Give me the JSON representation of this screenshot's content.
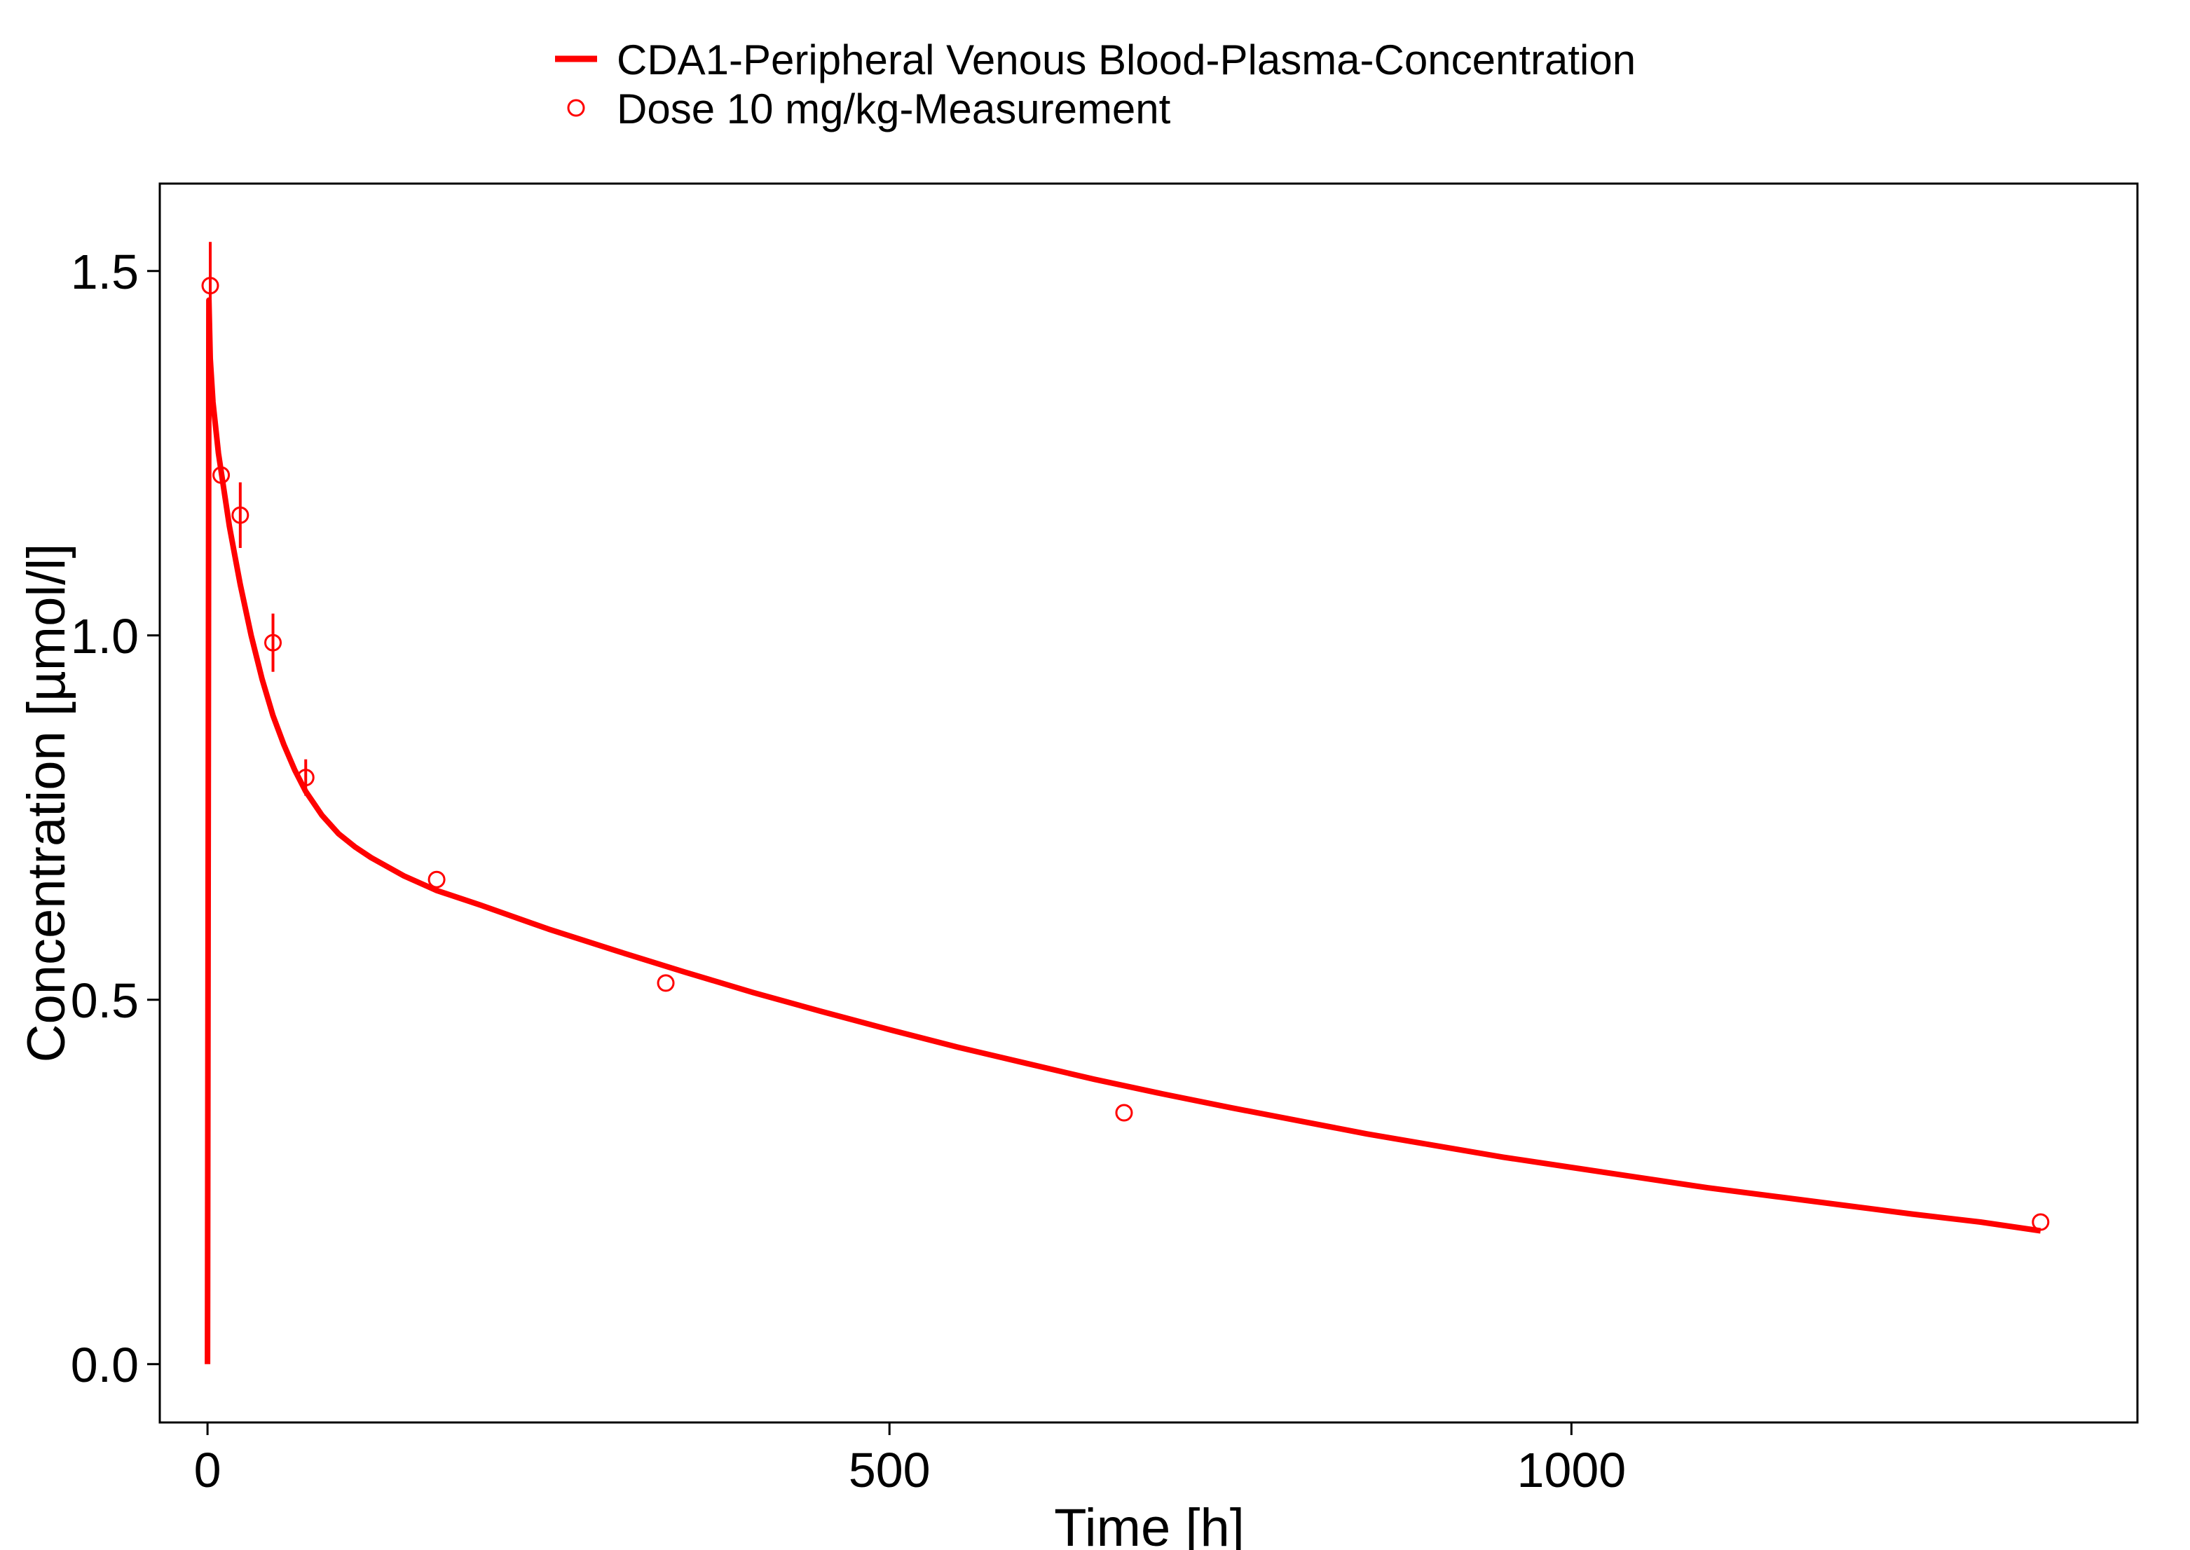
{
  "chart_data": {
    "type": "line",
    "xlabel": "Time [h]",
    "ylabel": "Concentration [µmol/l]",
    "xlim": [
      -35,
      1415
    ],
    "ylim": [
      -0.08,
      1.62
    ],
    "xticks": [
      0,
      500,
      1000
    ],
    "xtick_labels": [
      "0",
      "500",
      "1000"
    ],
    "yticks": [
      0.0,
      0.5,
      1.0,
      1.5
    ],
    "ytick_labels": [
      "0.0",
      "0.5",
      "1.0",
      "1.5"
    ],
    "grid": false,
    "legend_position": "top",
    "colors": {
      "series": "#ff0000",
      "axis": "#000000",
      "background": "#ffffff"
    },
    "series": [
      {
        "name": "CDA1-Peripheral Venous Blood-Plasma-Concentration",
        "kind": "line",
        "x": [
          0,
          1,
          2,
          4,
          8,
          12,
          16,
          20,
          24,
          32,
          40,
          48,
          56,
          64,
          72,
          84,
          96,
          108,
          120,
          144,
          168,
          200,
          250,
          300,
          350,
          400,
          450,
          500,
          550,
          600,
          650,
          700,
          750,
          800,
          850,
          900,
          950,
          1000,
          1050,
          1100,
          1150,
          1200,
          1250,
          1300,
          1344
        ],
        "y": [
          0.0,
          1.46,
          1.38,
          1.32,
          1.25,
          1.2,
          1.15,
          1.11,
          1.07,
          1.0,
          0.94,
          0.89,
          0.85,
          0.815,
          0.786,
          0.753,
          0.728,
          0.71,
          0.695,
          0.67,
          0.65,
          0.63,
          0.597,
          0.567,
          0.538,
          0.51,
          0.484,
          0.459,
          0.435,
          0.413,
          0.391,
          0.371,
          0.352,
          0.334,
          0.316,
          0.3,
          0.284,
          0.27,
          0.256,
          0.242,
          0.23,
          0.218,
          0.206,
          0.195,
          0.183
        ]
      },
      {
        "name": "Dose 10 mg/kg-Measurement",
        "kind": "scatter",
        "points": [
          {
            "x": 2,
            "y": 1.48,
            "err": 0.06
          },
          {
            "x": 10,
            "y": 1.22,
            "err": 0
          },
          {
            "x": 24,
            "y": 1.165,
            "err": 0.045
          },
          {
            "x": 48,
            "y": 0.99,
            "err": 0.04
          },
          {
            "x": 72,
            "y": 0.805,
            "err": 0.025
          },
          {
            "x": 168,
            "y": 0.665,
            "err": 0
          },
          {
            "x": 336,
            "y": 0.523,
            "err": 0
          },
          {
            "x": 672,
            "y": 0.345,
            "err": 0
          },
          {
            "x": 1344,
            "y": 0.195,
            "err": 0
          }
        ]
      }
    ]
  }
}
